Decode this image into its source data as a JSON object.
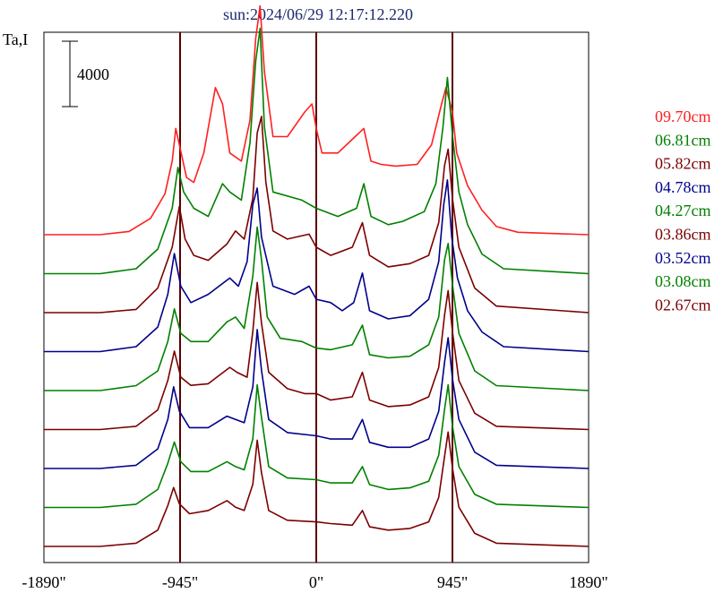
{
  "chart_data": {
    "type": "line",
    "title": "sun:2024/06/29 12:17:12.220",
    "ylabel": "Ta,I",
    "scale_bar": {
      "label": "4000"
    },
    "xlim": [
      -1890,
      1890
    ],
    "xticks": [
      -1890,
      -945,
      0,
      945,
      1890
    ],
    "xtick_labels": [
      "-1890\"",
      "-945\"",
      "0\"",
      "945\"",
      "1890\""
    ],
    "vlines": [
      -945,
      0,
      945
    ],
    "vline_color": "#5a0000",
    "series": [
      {
        "name": "09.70cm",
        "color": "#ff2020",
        "profile": "p970"
      },
      {
        "name": "06.81cm",
        "color": "#008000",
        "profile": "p681"
      },
      {
        "name": "05.82cm",
        "color": "#7b0000",
        "profile": "p582"
      },
      {
        "name": "04.78cm",
        "color": "#00008b",
        "profile": "p478"
      },
      {
        "name": "04.27cm",
        "color": "#008000",
        "profile": "p427"
      },
      {
        "name": "03.86cm",
        "color": "#7b0000",
        "profile": "p386"
      },
      {
        "name": "03.52cm",
        "color": "#00008b",
        "profile": "p352"
      },
      {
        "name": "03.08cm",
        "color": "#008000",
        "profile": "p308"
      },
      {
        "name": "02.67cm",
        "color": "#7b0000",
        "profile": "p267"
      }
    ],
    "profiles": {
      "p970": [
        [
          -1890,
          0
        ],
        [
          -1500,
          0
        ],
        [
          -1300,
          200
        ],
        [
          -1150,
          1000
        ],
        [
          -1050,
          2500
        ],
        [
          -1000,
          4500
        ],
        [
          -975,
          6500
        ],
        [
          -950,
          5500
        ],
        [
          -900,
          3500
        ],
        [
          -850,
          3200
        ],
        [
          -780,
          5000
        ],
        [
          -700,
          9000
        ],
        [
          -650,
          8000
        ],
        [
          -600,
          5000
        ],
        [
          -520,
          4500
        ],
        [
          -460,
          7000
        ],
        [
          -420,
          12000
        ],
        [
          -390,
          14000
        ],
        [
          -360,
          10000
        ],
        [
          -300,
          6000
        ],
        [
          -200,
          6000
        ],
        [
          -80,
          7500
        ],
        [
          -30,
          8000
        ],
        [
          0,
          6500
        ],
        [
          40,
          5000
        ],
        [
          150,
          5000
        ],
        [
          270,
          6000
        ],
        [
          330,
          6500
        ],
        [
          380,
          4500
        ],
        [
          450,
          4300
        ],
        [
          550,
          4200
        ],
        [
          700,
          4300
        ],
        [
          800,
          5500
        ],
        [
          870,
          8000
        ],
        [
          900,
          9000
        ],
        [
          945,
          7500
        ],
        [
          975,
          5000
        ],
        [
          1050,
          3000
        ],
        [
          1150,
          1500
        ],
        [
          1250,
          500
        ],
        [
          1400,
          150
        ],
        [
          1890,
          0
        ]
      ],
      "p681": [
        [
          -1890,
          0
        ],
        [
          -1500,
          0
        ],
        [
          -1250,
          300
        ],
        [
          -1100,
          1500
        ],
        [
          -1000,
          4000
        ],
        [
          -960,
          6500
        ],
        [
          -920,
          5000
        ],
        [
          -850,
          4000
        ],
        [
          -750,
          3500
        ],
        [
          -650,
          5500
        ],
        [
          -600,
          5000
        ],
        [
          -520,
          4500
        ],
        [
          -460,
          8000
        ],
        [
          -420,
          13000
        ],
        [
          -390,
          15000
        ],
        [
          -360,
          9000
        ],
        [
          -300,
          5000
        ],
        [
          -100,
          4500
        ],
        [
          0,
          4000
        ],
        [
          150,
          3500
        ],
        [
          280,
          4000
        ],
        [
          330,
          5500
        ],
        [
          380,
          3500
        ],
        [
          500,
          3000
        ],
        [
          600,
          3200
        ],
        [
          750,
          3800
        ],
        [
          830,
          5500
        ],
        [
          880,
          9000
        ],
        [
          910,
          12000
        ],
        [
          945,
          8500
        ],
        [
          990,
          5000
        ],
        [
          1050,
          3000
        ],
        [
          1150,
          1200
        ],
        [
          1300,
          300
        ],
        [
          1890,
          0
        ]
      ],
      "p582": [
        [
          -1890,
          0
        ],
        [
          -1500,
          0
        ],
        [
          -1250,
          200
        ],
        [
          -1100,
          1500
        ],
        [
          -1000,
          4000
        ],
        [
          -950,
          6500
        ],
        [
          -910,
          4500
        ],
        [
          -850,
          3500
        ],
        [
          -750,
          3200
        ],
        [
          -620,
          4200
        ],
        [
          -560,
          5000
        ],
        [
          -500,
          4500
        ],
        [
          -440,
          7000
        ],
        [
          -410,
          11000
        ],
        [
          -380,
          12000
        ],
        [
          -350,
          8000
        ],
        [
          -300,
          5000
        ],
        [
          -200,
          4500
        ],
        [
          -50,
          4800
        ],
        [
          0,
          4000
        ],
        [
          100,
          3500
        ],
        [
          250,
          4000
        ],
        [
          320,
          5500
        ],
        [
          370,
          3500
        ],
        [
          500,
          2800
        ],
        [
          650,
          3000
        ],
        [
          780,
          3500
        ],
        [
          850,
          5500
        ],
        [
          890,
          9000
        ],
        [
          915,
          10000
        ],
        [
          945,
          7000
        ],
        [
          990,
          4000
        ],
        [
          1100,
          1500
        ],
        [
          1250,
          400
        ],
        [
          1890,
          0
        ]
      ],
      "p478": [
        [
          -1890,
          0
        ],
        [
          -1500,
          0
        ],
        [
          -1250,
          300
        ],
        [
          -1100,
          1500
        ],
        [
          -1030,
          3500
        ],
        [
          -985,
          6000
        ],
        [
          -940,
          4000
        ],
        [
          -870,
          3000
        ],
        [
          -750,
          3500
        ],
        [
          -600,
          4500
        ],
        [
          -540,
          4000
        ],
        [
          -480,
          5500
        ],
        [
          -440,
          9000
        ],
        [
          -410,
          10000
        ],
        [
          -380,
          7000
        ],
        [
          -300,
          4000
        ],
        [
          -150,
          3500
        ],
        [
          -50,
          4000
        ],
        [
          0,
          3200
        ],
        [
          100,
          3000
        ],
        [
          180,
          2500
        ],
        [
          260,
          3000
        ],
        [
          320,
          4800
        ],
        [
          370,
          2500
        ],
        [
          500,
          2000
        ],
        [
          650,
          2200
        ],
        [
          780,
          3200
        ],
        [
          850,
          5500
        ],
        [
          885,
          9000
        ],
        [
          910,
          10500
        ],
        [
          940,
          7000
        ],
        [
          980,
          4500
        ],
        [
          1050,
          2500
        ],
        [
          1150,
          1200
        ],
        [
          1300,
          300
        ],
        [
          1890,
          0
        ]
      ],
      "p427": [
        [
          -1890,
          0
        ],
        [
          -1500,
          0
        ],
        [
          -1250,
          300
        ],
        [
          -1100,
          1200
        ],
        [
          -1030,
          3000
        ],
        [
          -985,
          5000
        ],
        [
          -940,
          3500
        ],
        [
          -870,
          3000
        ],
        [
          -750,
          3000
        ],
        [
          -620,
          4200
        ],
        [
          -560,
          4500
        ],
        [
          -500,
          3800
        ],
        [
          -440,
          7000
        ],
        [
          -410,
          10000
        ],
        [
          -380,
          8000
        ],
        [
          -340,
          4500
        ],
        [
          -250,
          3200
        ],
        [
          -100,
          3000
        ],
        [
          0,
          2600
        ],
        [
          100,
          2500
        ],
        [
          250,
          2800
        ],
        [
          320,
          4000
        ],
        [
          370,
          2200
        ],
        [
          500,
          2000
        ],
        [
          650,
          2100
        ],
        [
          780,
          2800
        ],
        [
          850,
          4500
        ],
        [
          890,
          8000
        ],
        [
          915,
          9000
        ],
        [
          945,
          6500
        ],
        [
          990,
          3500
        ],
        [
          1100,
          1200
        ],
        [
          1250,
          300
        ],
        [
          1890,
          0
        ]
      ],
      "p386": [
        [
          -1890,
          0
        ],
        [
          -1500,
          0
        ],
        [
          -1250,
          200
        ],
        [
          -1100,
          1200
        ],
        [
          -1030,
          3000
        ],
        [
          -985,
          4800
        ],
        [
          -940,
          3200
        ],
        [
          -870,
          2700
        ],
        [
          -750,
          2800
        ],
        [
          -600,
          3800
        ],
        [
          -550,
          3500
        ],
        [
          -480,
          3200
        ],
        [
          -440,
          6000
        ],
        [
          -410,
          9000
        ],
        [
          -380,
          6500
        ],
        [
          -330,
          3500
        ],
        [
          -200,
          2500
        ],
        [
          -80,
          2200
        ],
        [
          0,
          2200
        ],
        [
          100,
          1800
        ],
        [
          250,
          2000
        ],
        [
          320,
          3500
        ],
        [
          370,
          1800
        ],
        [
          500,
          1400
        ],
        [
          650,
          1500
        ],
        [
          780,
          2000
        ],
        [
          850,
          3800
        ],
        [
          890,
          7000
        ],
        [
          915,
          8500
        ],
        [
          945,
          6000
        ],
        [
          990,
          3000
        ],
        [
          1100,
          1000
        ],
        [
          1250,
          200
        ],
        [
          1890,
          0
        ]
      ],
      "p352": [
        [
          -1890,
          0
        ],
        [
          -1500,
          0
        ],
        [
          -1250,
          200
        ],
        [
          -1100,
          1200
        ],
        [
          -1030,
          3000
        ],
        [
          -990,
          5000
        ],
        [
          -950,
          3500
        ],
        [
          -880,
          2500
        ],
        [
          -750,
          2500
        ],
        [
          -620,
          3200
        ],
        [
          -560,
          3000
        ],
        [
          -500,
          2800
        ],
        [
          -440,
          5000
        ],
        [
          -410,
          8500
        ],
        [
          -380,
          6000
        ],
        [
          -330,
          3000
        ],
        [
          -200,
          2200
        ],
        [
          0,
          2000
        ],
        [
          100,
          1800
        ],
        [
          250,
          1800
        ],
        [
          320,
          3000
        ],
        [
          370,
          1600
        ],
        [
          500,
          1300
        ],
        [
          650,
          1300
        ],
        [
          780,
          1800
        ],
        [
          850,
          3500
        ],
        [
          890,
          6500
        ],
        [
          915,
          8000
        ],
        [
          945,
          5500
        ],
        [
          990,
          3000
        ],
        [
          1100,
          1000
        ],
        [
          1250,
          200
        ],
        [
          1890,
          0
        ]
      ],
      "p308": [
        [
          -1890,
          0
        ],
        [
          -1500,
          0
        ],
        [
          -1250,
          200
        ],
        [
          -1100,
          1100
        ],
        [
          -1030,
          2700
        ],
        [
          -985,
          4000
        ],
        [
          -940,
          2800
        ],
        [
          -870,
          2200
        ],
        [
          -750,
          2200
        ],
        [
          -620,
          2800
        ],
        [
          -560,
          2500
        ],
        [
          -500,
          2300
        ],
        [
          -440,
          4200
        ],
        [
          -410,
          7500
        ],
        [
          -380,
          5500
        ],
        [
          -330,
          2500
        ],
        [
          -200,
          1800
        ],
        [
          0,
          1700
        ],
        [
          100,
          1500
        ],
        [
          250,
          1500
        ],
        [
          320,
          2500
        ],
        [
          370,
          1400
        ],
        [
          500,
          1100
        ],
        [
          650,
          1200
        ],
        [
          780,
          1600
        ],
        [
          850,
          3200
        ],
        [
          890,
          6000
        ],
        [
          915,
          7500
        ],
        [
          945,
          5000
        ],
        [
          990,
          2500
        ],
        [
          1100,
          800
        ],
        [
          1250,
          200
        ],
        [
          1890,
          0
        ]
      ],
      "p267": [
        [
          -1890,
          0
        ],
        [
          -1500,
          0
        ],
        [
          -1250,
          200
        ],
        [
          -1100,
          1000
        ],
        [
          -1030,
          2500
        ],
        [
          -990,
          3600
        ],
        [
          -950,
          2600
        ],
        [
          -880,
          2000
        ],
        [
          -750,
          2200
        ],
        [
          -620,
          2800
        ],
        [
          -560,
          2400
        ],
        [
          -500,
          2200
        ],
        [
          -440,
          3800
        ],
        [
          -410,
          6500
        ],
        [
          -380,
          4500
        ],
        [
          -330,
          2200
        ],
        [
          -200,
          1600
        ],
        [
          0,
          1500
        ],
        [
          100,
          1400
        ],
        [
          250,
          1300
        ],
        [
          320,
          2200
        ],
        [
          370,
          1200
        ],
        [
          500,
          1000
        ],
        [
          650,
          1100
        ],
        [
          780,
          1500
        ],
        [
          850,
          3000
        ],
        [
          890,
          5500
        ],
        [
          915,
          7000
        ],
        [
          945,
          4800
        ],
        [
          990,
          2400
        ],
        [
          1100,
          800
        ],
        [
          1250,
          200
        ],
        [
          1890,
          0
        ]
      ]
    }
  }
}
